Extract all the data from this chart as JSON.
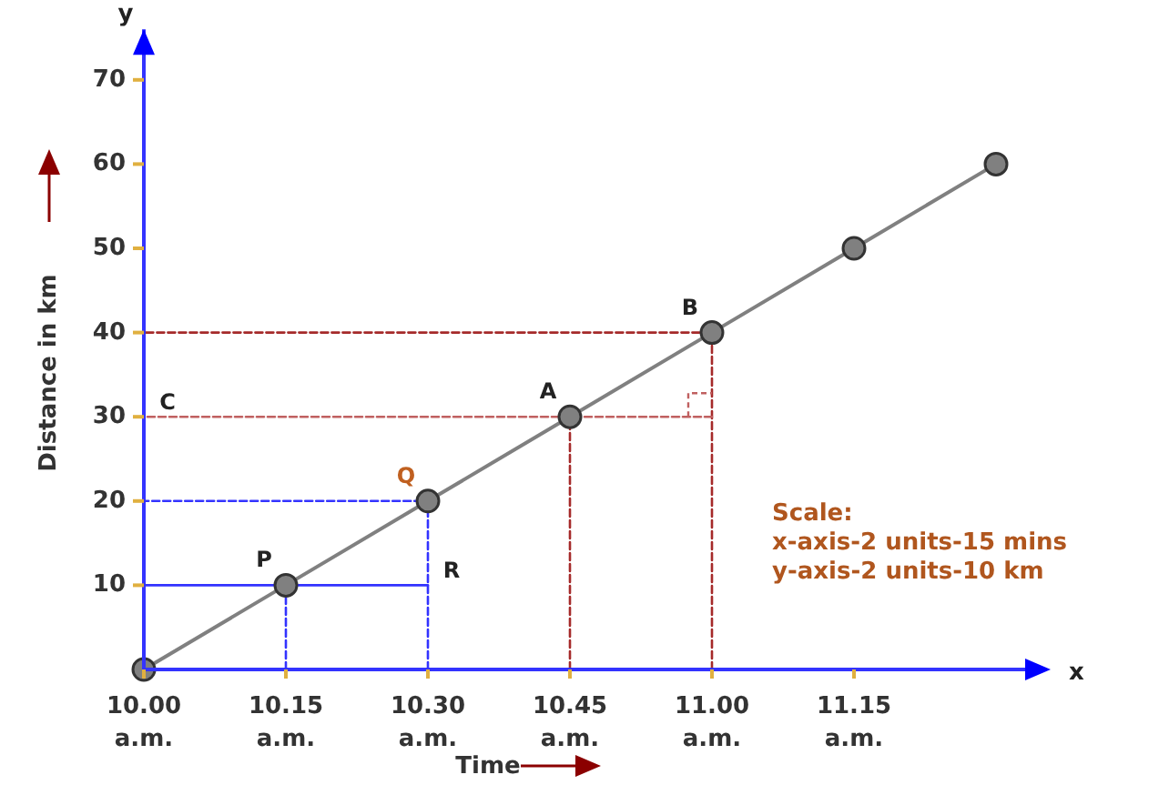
{
  "chart_data": {
    "type": "line",
    "xlabel": "Time",
    "ylabel": "Distance in km",
    "categories": [
      "10.00 a.m.",
      "10.15 a.m.",
      "10.30 a.m.",
      "10.45 a.m.",
      "11.00 a.m.",
      "11.15 a.m.",
      null
    ],
    "ylim": [
      0,
      76
    ],
    "yticks": [
      10,
      20,
      30,
      40,
      50,
      60,
      70
    ],
    "grid": false,
    "series": [
      {
        "color": "#a52a2a",
        "line_style": "dashed",
        "x": [
          "10.00 a.m.",
          "11.00 a.m.",
          "11.00 a.m."
        ],
        "values": [
          40,
          40,
          0
        ]
      },
      {
        "color": "#c06060",
        "line_style": "dashed",
        "x": [
          "10.00 a.m.",
          "11.00 a.m."
        ],
        "values": [
          30,
          30
        ]
      },
      {
        "color": "#a52a2a",
        "line_style": "dashed",
        "x": [
          "10.45 a.m.",
          "10.45 a.m."
        ],
        "values": [
          30,
          0
        ]
      },
      {
        "color": "#3333ff",
        "line_style": "dashed",
        "x": [
          "10.00 a.m.",
          "10.30 a.m.",
          "10.30 a.m."
        ],
        "values": [
          20,
          20,
          0
        ]
      },
      {
        "color": "#3333ff",
        "line_style": "dashed",
        "x": [
          "10.15 a.m.",
          "10.15 a.m."
        ],
        "values": [
          10,
          0
        ]
      },
      {
        "color": "#3333ff",
        "line_style": "solid",
        "x": [
          "10.00 a.m.",
          "10.30 a.m."
        ],
        "values": [
          10,
          10
        ]
      },
      {
        "color": "#808080",
        "line_style": "solid",
        "marker": "circle",
        "values": [
          0,
          10,
          20,
          30,
          40,
          50,
          60
        ]
      }
    ],
    "annotations": [
      {
        "text": "A",
        "x": "10.45 a.m.",
        "y": 30
      },
      {
        "text": "B",
        "x": "11.00 a.m.",
        "y": 40
      },
      {
        "text": "C",
        "x": "10.00 a.m.",
        "y": 30
      },
      {
        "text": "P",
        "x": "10.15 a.m.",
        "y": 10
      },
      {
        "text": "Q",
        "x": "10.30 a.m.",
        "y": 20
      },
      {
        "text": "R",
        "x": "10.30 a.m.",
        "y": 10
      },
      "y",
      "x",
      "Scale:",
      "x-axis-2 units-15 mins",
      "y-axis-2 units-10 km"
    ]
  }
}
